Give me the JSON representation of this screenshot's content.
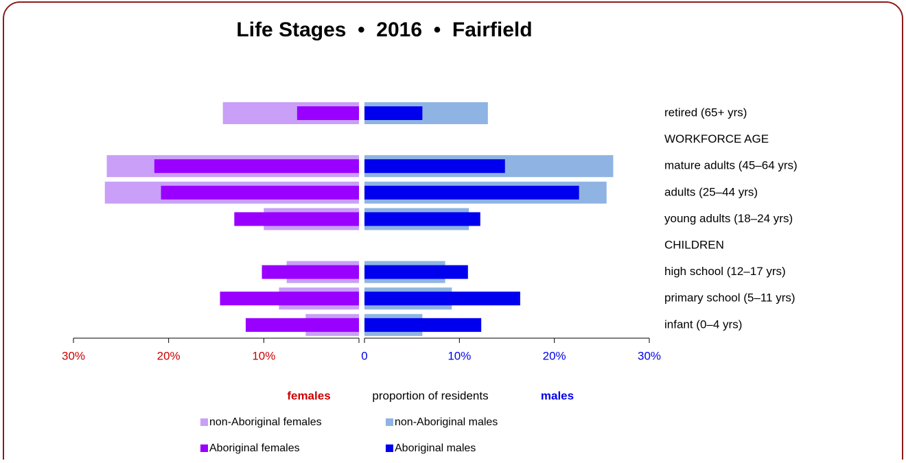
{
  "chart_data": {
    "type": "pyramid",
    "title": "Life Stages  •  2016  •  Fairfield",
    "categories": [
      "retired (65+ yrs)",
      "WORKFORCE AGE",
      "mature adults (45–64 yrs)",
      "adults (25–44 yrs)",
      "young adults (18–24 yrs)",
      "CHILDREN",
      "high school (12–17 yrs)",
      "primary school (5–11 yrs)",
      "infant (0–4 yrs)"
    ],
    "series": [
      {
        "name": "non-Aboriginal females",
        "side": "left",
        "color": "#c99ff7",
        "values": [
          14.3,
          null,
          26.5,
          26.7,
          10.0,
          null,
          7.6,
          8.4,
          5.6
        ]
      },
      {
        "name": "Aboriginal females",
        "side": "left",
        "color": "#9900ff",
        "values": [
          6.5,
          null,
          21.5,
          20.8,
          13.1,
          null,
          10.2,
          14.6,
          11.9
        ]
      },
      {
        "name": "non-Aboriginal males",
        "side": "right",
        "color": "#8fb4e3",
        "values": [
          13.0,
          null,
          26.2,
          25.5,
          11.0,
          null,
          8.5,
          9.2,
          6.1
        ]
      },
      {
        "name": "Aboriginal males",
        "side": "right",
        "color": "#0000ee",
        "values": [
          6.1,
          null,
          14.8,
          22.6,
          12.2,
          null,
          10.9,
          16.4,
          12.3
        ]
      }
    ],
    "left_xlim": [
      0,
      30
    ],
    "right_xlim": [
      0,
      30
    ],
    "left_xticks": [
      {
        "value": 30,
        "label": "30%"
      },
      {
        "value": 20,
        "label": "20%"
      },
      {
        "value": 10,
        "label": "10%"
      }
    ],
    "right_xticks": [
      0,
      {
        "value": 10,
        "label": "10%"
      },
      {
        "value": 20,
        "label": "20%"
      },
      {
        "value": 30,
        "label": "30%"
      }
    ],
    "left_label": "females",
    "x_label": "proportion of residents",
    "right_label": "males"
  }
}
